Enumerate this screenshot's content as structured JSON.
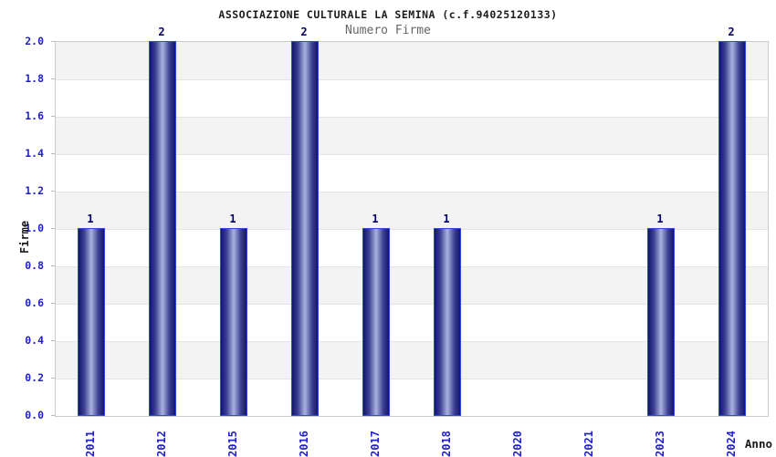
{
  "chart_data": {
    "type": "bar",
    "title": "ASSOCIAZIONE CULTURALE LA SEMINA (c.f.94025120133)",
    "subtitle": "Numero Firme",
    "xlabel": "Anno",
    "ylabel": "Firme",
    "categories": [
      "2011",
      "2012",
      "2015",
      "2016",
      "2017",
      "2018",
      "2020",
      "2021",
      "2023",
      "2024"
    ],
    "values": [
      1,
      2,
      1,
      2,
      1,
      1,
      0,
      0,
      1,
      2
    ],
    "ylim": [
      0,
      2
    ],
    "ytick_step": 0.2,
    "ytick_labels": [
      "0.0",
      "0.2",
      "0.4",
      "0.6",
      "0.8",
      "1.0",
      "1.2",
      "1.4",
      "1.6",
      "1.8",
      "2.0"
    ],
    "legend_position": "none",
    "grid": "alternating horizontal bands with light gridlines each 0.2",
    "colors": {
      "bar_border": "#2e4bdb",
      "bar_gradient_dark": "#15156b",
      "bar_gradient_light": "#a9b3de",
      "tick_label_blue": "#2121cd",
      "value_label_navy": "#000066",
      "band_gray": "#f3f3f3",
      "band_white": "#ffffff",
      "gridline": "#e4e4e4",
      "plot_border": "#cccccc",
      "title_color": "#1c1c1c",
      "subtitle_color": "#666666",
      "axis_title_color": "#1a1a1a"
    }
  }
}
